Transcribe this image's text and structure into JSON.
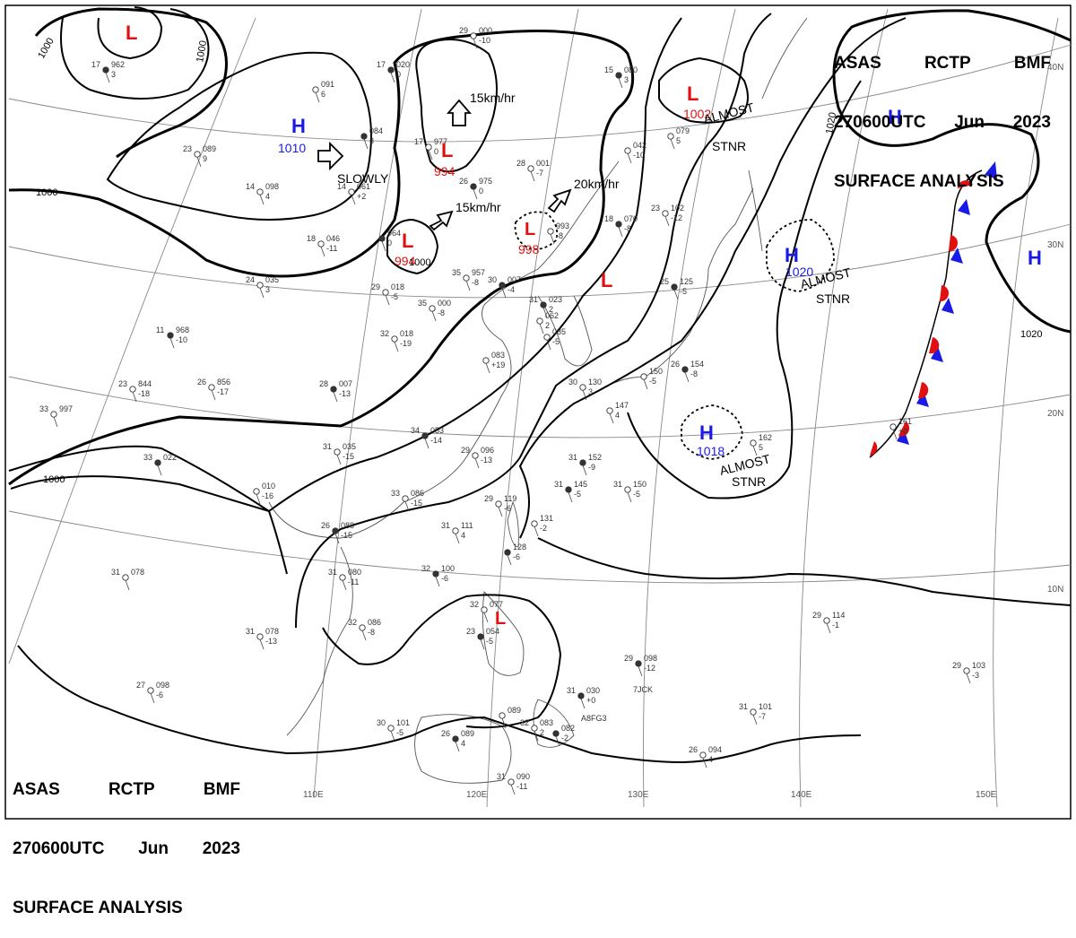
{
  "header": {
    "line1": [
      "ASAS",
      "RCTP",
      "BMF"
    ],
    "line2": [
      "270600UTC",
      "Jun",
      "2023"
    ],
    "line3": "SURFACE ANALYSIS"
  },
  "colors": {
    "high": "#1a1ae6",
    "low": "#e01010",
    "front_warm": "#e01010",
    "front_cold": "#1a1ae6"
  },
  "lon_labels": [
    "110E",
    "120E",
    "130E",
    "140E",
    "150E"
  ],
  "lat_labels": [
    "40N",
    "30N",
    "20N",
    "10N"
  ],
  "isobar_labels": [
    "1000",
    "1000",
    "1000",
    "1000",
    "1000",
    "1020",
    "1020"
  ],
  "centers": [
    {
      "type": "L",
      "value": ""
    },
    {
      "type": "H",
      "value": "1010"
    },
    {
      "type": "L",
      "value": "994"
    },
    {
      "type": "L",
      "value": "994"
    },
    {
      "type": "L",
      "value": "998"
    },
    {
      "type": "L",
      "value": "1002"
    },
    {
      "type": "L",
      "value": ""
    },
    {
      "type": "H",
      "value": ""
    },
    {
      "type": "H",
      "value": "1020"
    },
    {
      "type": "H",
      "value": ""
    },
    {
      "type": "H",
      "value": "1018"
    },
    {
      "type": "L",
      "value": ""
    }
  ],
  "motion": {
    "slowly": "SLOWLY",
    "speed1": "15km/hr",
    "speed2": "15km/hr",
    "speed3": "20km/hr",
    "stnr1a": "ALMOST",
    "stnr1b": "STNR",
    "stnr2a": "ALMOST",
    "stnr2b": "STNR",
    "stnr3a": "ALMOST",
    "stnr3b": "STNR"
  },
  "stations": [
    {
      "a": "17",
      "b": "962",
      "c": "3"
    },
    {
      "a": "23",
      "b": "089",
      "c": "9"
    },
    {
      "a": "",
      "b": "091",
      "c": "6"
    },
    {
      "a": "",
      "b": "084",
      "c": "3"
    },
    {
      "a": "14",
      "b": "098",
      "c": "4"
    },
    {
      "a": "14",
      "b": "061",
      "c": "+2"
    },
    {
      "a": "17",
      "b": "020",
      "c": "0"
    },
    {
      "a": "17",
      "b": "977",
      "c": "0"
    },
    {
      "a": "29",
      "b": "000",
      "c": "-10"
    },
    {
      "a": "26",
      "b": "975",
      "c": "0"
    },
    {
      "a": "28",
      "b": "001",
      "c": "-7"
    },
    {
      "a": "",
      "b": "993",
      "c": "-8"
    },
    {
      "a": "15",
      "b": "080",
      "c": "3"
    },
    {
      "a": "",
      "b": "042",
      "c": "-10"
    },
    {
      "a": "",
      "b": "079",
      "c": "5"
    },
    {
      "a": "18",
      "b": "070",
      "c": "-8"
    },
    {
      "a": "23",
      "b": "102",
      "c": "-12"
    },
    {
      "a": "18",
      "b": "046",
      "c": "-11"
    },
    {
      "a": "",
      "b": "964",
      "c": "0"
    },
    {
      "a": "29",
      "b": "018",
      "c": "-5"
    },
    {
      "a": "35",
      "b": "957",
      "c": "-8"
    },
    {
      "a": "30",
      "b": "007",
      "c": "-4"
    },
    {
      "a": "24",
      "b": "035",
      "c": "3"
    },
    {
      "a": "35",
      "b": "000",
      "c": "-8"
    },
    {
      "a": "31",
      "b": "023",
      "c": "2"
    },
    {
      "a": "",
      "b": "062",
      "c": "2"
    },
    {
      "a": "",
      "b": "085",
      "c": "-5"
    },
    {
      "a": "11",
      "b": "968",
      "c": "-10"
    },
    {
      "a": "32",
      "b": "018",
      "c": "-19"
    },
    {
      "a": "",
      "b": "083",
      "c": "+19"
    },
    {
      "a": "25",
      "b": "125",
      "c": "-5"
    },
    {
      "a": "23",
      "b": "844",
      "c": "-18"
    },
    {
      "a": "26",
      "b": "856",
      "c": "-17"
    },
    {
      "a": "28",
      "b": "007",
      "c": "-13"
    },
    {
      "a": "30",
      "b": "130",
      "c": "3"
    },
    {
      "a": "",
      "b": "150",
      "c": "-5"
    },
    {
      "a": "26",
      "b": "154",
      "c": "-8"
    },
    {
      "a": "33",
      "b": "997",
      "c": ""
    },
    {
      "a": "",
      "b": "147",
      "c": "4"
    },
    {
      "a": "34",
      "b": "053",
      "c": "-14"
    },
    {
      "a": "31",
      "b": "035",
      "c": "-15"
    },
    {
      "a": "29",
      "b": "096",
      "c": "-13"
    },
    {
      "a": "31",
      "b": "152",
      "c": "-9"
    },
    {
      "a": "",
      "b": "162",
      "c": "5"
    },
    {
      "a": "",
      "b": "161",
      "c": "+0"
    },
    {
      "a": "33",
      "b": "022",
      "c": ""
    },
    {
      "a": "",
      "b": "010",
      "c": "-16"
    },
    {
      "a": "33",
      "b": "086",
      "c": "-15"
    },
    {
      "a": "31",
      "b": "145",
      "c": "-5"
    },
    {
      "a": "31",
      "b": "150",
      "c": "-5"
    },
    {
      "a": "29",
      "b": "119",
      "c": "-6"
    },
    {
      "a": "26",
      "b": "088",
      "c": "-15"
    },
    {
      "a": "31",
      "b": "111",
      "c": "4"
    },
    {
      "a": "",
      "b": "131",
      "c": "-2"
    },
    {
      "a": "",
      "b": "128",
      "c": "-6"
    },
    {
      "a": "31",
      "b": "078",
      "c": ""
    },
    {
      "a": "31",
      "b": "080",
      "c": "-11"
    },
    {
      "a": "32",
      "b": "100",
      "c": "-6"
    },
    {
      "a": "32",
      "b": "086",
      "c": "-8"
    },
    {
      "a": "32",
      "b": "077",
      "c": ""
    },
    {
      "a": "23",
      "b": "054",
      "c": "-5"
    },
    {
      "a": "31",
      "b": "078",
      "c": "-13"
    },
    {
      "a": "29",
      "b": "114",
      "c": "-1"
    },
    {
      "a": "29",
      "b": "098",
      "c": "-12"
    },
    {
      "a": "29",
      "b": "103",
      "c": "-3"
    },
    {
      "a": "27",
      "b": "098",
      "c": "-6"
    },
    {
      "a": "31",
      "b": "030",
      "c": "+0"
    },
    {
      "a": "31",
      "b": "101",
      "c": "-7"
    },
    {
      "a": "30",
      "b": "101",
      "c": "-5"
    },
    {
      "a": "26",
      "b": "089",
      "c": "4"
    },
    {
      "a": "",
      "b": "089",
      "c": ""
    },
    {
      "a": "32",
      "b": "083",
      "c": "2"
    },
    {
      "a": "",
      "b": "082",
      "c": "-2"
    },
    {
      "a": "31",
      "b": "090",
      "c": "-11"
    },
    {
      "a": "26",
      "b": "094",
      "c": "4"
    }
  ],
  "ship_ids": [
    "7JCK",
    "A8FG3"
  ]
}
